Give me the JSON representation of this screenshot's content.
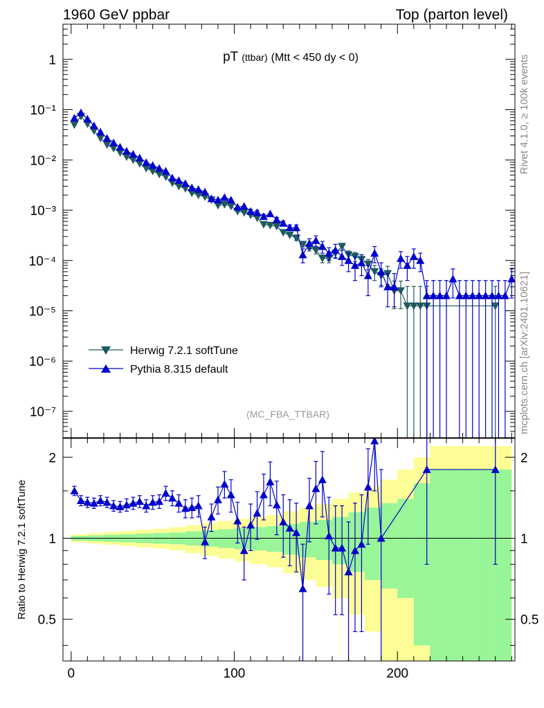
{
  "header": {
    "left": "1960 GeV ppbar",
    "right": "Top (parton level)"
  },
  "side_labels": {
    "rivet": "Rivet 4.1.0, ≥ 100k events",
    "mcplots": "mcplots.cern.ch [arXiv:2401.10621]"
  },
  "chart_data": [
    {
      "type": "scatter",
      "title": "pT",
      "title_sub": "(ttbar)",
      "title_cut": "(Mtt < 450 dy < 0)",
      "analysis_tag": "(MC_FBA_TTBAR)",
      "xlabel": "",
      "ylabel": "",
      "xlim": [
        -5,
        272
      ],
      "yscale": "log",
      "ylim": [
        3e-08,
        5
      ],
      "y_ticks": [
        "1",
        "10⁻¹",
        "10⁻²",
        "10⁻³",
        "10⁻⁴",
        "10⁻⁵",
        "10⁻⁶",
        "10⁻⁷"
      ],
      "series": [
        {
          "name": "Herwig 7.2.1 softTune",
          "color": "#1f5a5f",
          "marker": "triangle-down",
          "x": [
            2,
            6,
            10,
            14,
            18,
            22,
            26,
            30,
            34,
            38,
            42,
            46,
            50,
            54,
            58,
            62,
            66,
            70,
            74,
            78,
            82,
            86,
            90,
            94,
            98,
            102,
            106,
            110,
            114,
            118,
            122,
            126,
            130,
            134,
            138,
            142,
            146,
            150,
            154,
            158,
            162,
            166,
            170,
            174,
            178,
            182,
            186,
            190,
            194,
            198,
            202,
            206,
            210,
            214,
            218,
            260
          ],
          "y": [
            0.05,
            0.074,
            0.052,
            0.038,
            0.027,
            0.02,
            0.017,
            0.014,
            0.0115,
            0.01,
            0.0085,
            0.0068,
            0.006,
            0.0052,
            0.0046,
            0.0035,
            0.003,
            0.0027,
            0.0022,
            0.002,
            0.00185,
            0.0016,
            0.00125,
            0.0013,
            0.0012,
            0.00095,
            0.0009,
            0.0008,
            0.0007,
            0.00052,
            0.0005,
            0.00048,
            0.00036,
            0.00032,
            0.00028,
            0.00021,
            0.00018,
            0.00016,
            0.00011,
            0.00011,
            0.00014,
            0.00019,
            0.00013,
            0.00012,
            0.000105,
            8.5e-05,
            6e-05,
            5e-05,
            5.5e-05,
            2.5e-05,
            2.5e-05,
            1.25e-05,
            1.25e-05,
            1.25e-05,
            1.25e-05,
            1.25e-05
          ],
          "err_low": [
            0.002,
            0.003,
            0.002,
            0.0015,
            0.001,
            0.0008,
            0.0007,
            0.0006,
            0.0005,
            0.0004,
            0.00035,
            0.0003,
            0.00025,
            0.00022,
            0.0002,
            0.00016,
            0.00014,
            0.00012,
            0.0001,
            9e-05,
            9e-05,
            8e-05,
            7e-05,
            7e-05,
            7e-05,
            6e-05,
            6e-05,
            5e-05,
            5e-05,
            4e-05,
            4e-05,
            4e-05,
            3e-05,
            3e-05,
            3e-05,
            2.5e-05,
            2.5e-05,
            2.5e-05,
            2e-05,
            2e-05,
            2.5e-05,
            3e-05,
            2.5e-05,
            2.5e-05,
            2.5e-05,
            2e-05,
            2e-05,
            1.8e-05,
            2.2e-05,
            1.4e-05,
            1.4e-05,
            1.25e-05,
            1.25e-05,
            1.25e-05,
            1.25e-05,
            1.25e-05
          ],
          "err_high": [
            0.002,
            0.003,
            0.002,
            0.0015,
            0.001,
            0.0008,
            0.0007,
            0.0006,
            0.0005,
            0.0004,
            0.00035,
            0.0003,
            0.00025,
            0.00022,
            0.0002,
            0.00016,
            0.00014,
            0.00012,
            0.0001,
            9e-05,
            9e-05,
            8e-05,
            7e-05,
            7e-05,
            7e-05,
            6e-05,
            6e-05,
            5e-05,
            5e-05,
            4e-05,
            4e-05,
            4e-05,
            3e-05,
            3e-05,
            3e-05,
            2.5e-05,
            2.5e-05,
            2.5e-05,
            2e-05,
            2e-05,
            2.5e-05,
            3e-05,
            2.5e-05,
            2.5e-05,
            2.5e-05,
            2e-05,
            2e-05,
            1.8e-05,
            2.2e-05,
            1.4e-05,
            1.4e-05,
            1.8e-05,
            1.8e-05,
            1.8e-05,
            1.8e-05,
            1.8e-05
          ]
        },
        {
          "name": "Pythia 8.315 default",
          "color": "#0000cc",
          "marker": "triangle-up",
          "x": [
            2,
            6,
            10,
            14,
            18,
            22,
            26,
            30,
            34,
            38,
            42,
            46,
            50,
            54,
            58,
            62,
            66,
            70,
            74,
            78,
            82,
            86,
            90,
            94,
            98,
            102,
            106,
            110,
            114,
            118,
            122,
            126,
            130,
            134,
            138,
            142,
            146,
            150,
            154,
            158,
            162,
            166,
            170,
            174,
            178,
            182,
            186,
            190,
            194,
            198,
            202,
            206,
            210,
            214,
            218,
            222,
            226,
            230,
            234,
            238,
            242,
            246,
            250,
            254,
            258,
            262,
            266,
            270
          ],
          "y": [
            0.068,
            0.087,
            0.065,
            0.048,
            0.036,
            0.027,
            0.022,
            0.018,
            0.015,
            0.013,
            0.011,
            0.0089,
            0.0078,
            0.0068,
            0.006,
            0.0044,
            0.0039,
            0.0034,
            0.0028,
            0.0026,
            0.0023,
            0.0017,
            0.0016,
            0.0018,
            0.0016,
            0.00115,
            0.0012,
            0.00095,
            0.0009,
            0.00075,
            0.00085,
            0.00065,
            0.00055,
            0.00045,
            0.00045,
            0.00013,
            0.00022,
            0.00025,
            0.00019,
            0.00014,
            0.00016,
            0.00012,
            0.0001,
            8e-05,
            9e-05,
            5e-05,
            0.00014,
            6e-05,
            3e-05,
            3e-05,
            0.00011,
            8e-05,
            0.00012,
            0.0001,
            2e-05,
            2e-05,
            2e-05,
            2e-05,
            4.3e-05,
            2e-05,
            2e-05,
            2e-05,
            2e-05,
            2e-05,
            2e-05,
            2e-05,
            2e-05,
            4.3e-05
          ],
          "err_low": [
            0.003,
            0.004,
            0.003,
            0.002,
            0.0015,
            0.001,
            0.0009,
            0.0008,
            0.0007,
            0.0006,
            0.0005,
            0.00045,
            0.0004,
            0.00035,
            0.0003,
            0.00025,
            0.00022,
            0.0002,
            0.00018,
            0.00016,
            0.00015,
            0.00012,
            0.00012,
            0.00012,
            0.00012,
            0.0001,
            0.0001,
            9e-05,
            9e-05,
            8e-05,
            8e-05,
            7e-05,
            6e-05,
            6e-05,
            6e-05,
            4e-05,
            5e-05,
            6e-05,
            5e-05,
            4e-05,
            5e-05,
            4e-05,
            4e-05,
            4e-05,
            4e-05,
            3e-05,
            5e-05,
            3e-05,
            1.8e-05,
            1.8e-05,
            4e-05,
            4e-05,
            5e-05,
            4e-05,
            2e-05,
            2e-05,
            2e-05,
            2e-05,
            2.5e-05,
            2e-05,
            2e-05,
            2e-05,
            2e-05,
            2e-05,
            2e-05,
            2e-05,
            2e-05,
            2.5e-05
          ],
          "err_high": [
            0.003,
            0.004,
            0.003,
            0.002,
            0.0015,
            0.001,
            0.0009,
            0.0008,
            0.0007,
            0.0006,
            0.0005,
            0.00045,
            0.0004,
            0.00035,
            0.0003,
            0.00025,
            0.00022,
            0.0002,
            0.00018,
            0.00016,
            0.00015,
            0.00012,
            0.00012,
            0.00012,
            0.00012,
            0.0001,
            0.0001,
            9e-05,
            9e-05,
            8e-05,
            8e-05,
            7e-05,
            6e-05,
            6e-05,
            6e-05,
            4e-05,
            5e-05,
            6e-05,
            5e-05,
            4e-05,
            5e-05,
            4e-05,
            4e-05,
            4e-05,
            4e-05,
            3e-05,
            5e-05,
            3e-05,
            2.5e-05,
            2.5e-05,
            4e-05,
            4e-05,
            5e-05,
            4e-05,
            2e-05,
            2e-05,
            2e-05,
            2e-05,
            2.5e-05,
            2e-05,
            2e-05,
            2e-05,
            2e-05,
            2e-05,
            2e-05,
            2e-05,
            2e-05,
            2.5e-05
          ]
        }
      ]
    },
    {
      "type": "scatter",
      "title": "",
      "ylabel": "Ratio to Herwig 7.2.1 softTune",
      "xlabel": "",
      "xlim": [
        -5,
        272
      ],
      "ylim": [
        0.35,
        2.35
      ],
      "yscale": "log",
      "x_ticks": [
        0,
        100,
        200
      ],
      "y_ticks": [
        0.5,
        1,
        2
      ],
      "reference_line": 1,
      "band_x": [
        0,
        10,
        20,
        30,
        40,
        50,
        60,
        70,
        80,
        90,
        100,
        110,
        120,
        130,
        140,
        150,
        160,
        170,
        180,
        190,
        200,
        210,
        220,
        230,
        240,
        250,
        260
      ],
      "band_inner_halfwidth": [
        0.02,
        0.025,
        0.03,
        0.035,
        0.04,
        0.045,
        0.05,
        0.06,
        0.07,
        0.08,
        0.09,
        0.1,
        0.11,
        0.13,
        0.15,
        0.17,
        0.2,
        0.25,
        0.3,
        0.35,
        0.4,
        0.6,
        0.8,
        0.8,
        0.8,
        0.8,
        0.8
      ],
      "band_outer_halfwidth": [
        0.035,
        0.045,
        0.055,
        0.065,
        0.075,
        0.085,
        0.1,
        0.12,
        0.14,
        0.16,
        0.18,
        0.2,
        0.22,
        0.26,
        0.3,
        0.34,
        0.4,
        0.48,
        0.55,
        0.65,
        0.8,
        1.0,
        1.2,
        1.2,
        1.2,
        1.2,
        1.2
      ],
      "series": [
        {
          "name": "Pythia 8.315 default / Herwig 7.2.1 softTune",
          "color": "#0000cc",
          "marker": "triangle-up",
          "x": [
            2,
            6,
            10,
            14,
            18,
            22,
            26,
            30,
            34,
            38,
            42,
            46,
            50,
            54,
            58,
            62,
            66,
            70,
            74,
            78,
            82,
            86,
            90,
            94,
            98,
            102,
            106,
            110,
            114,
            118,
            122,
            126,
            130,
            134,
            138,
            142,
            146,
            150,
            154,
            158,
            162,
            166,
            170,
            174,
            178,
            182,
            186,
            190,
            218,
            260
          ],
          "y": [
            1.5,
            1.38,
            1.36,
            1.35,
            1.38,
            1.36,
            1.32,
            1.31,
            1.33,
            1.35,
            1.37,
            1.32,
            1.36,
            1.37,
            1.47,
            1.41,
            1.35,
            1.29,
            1.3,
            1.32,
            0.97,
            1.2,
            1.39,
            1.59,
            1.45,
            1.16,
            0.9,
            1.12,
            1.24,
            1.45,
            1.62,
            1.33,
            1.15,
            1.09,
            1.05,
            0.65,
            1.32,
            1.53,
            1.65,
            1.02,
            0.92,
            0.92,
            0.75,
            0.9,
            0.95,
            1.55,
            2.3,
            1.0,
            1.8,
            1.8
          ],
          "err": [
            0.06,
            0.06,
            0.06,
            0.06,
            0.06,
            0.06,
            0.06,
            0.06,
            0.07,
            0.07,
            0.07,
            0.07,
            0.08,
            0.08,
            0.09,
            0.09,
            0.1,
            0.1,
            0.11,
            0.12,
            0.13,
            0.14,
            0.16,
            0.18,
            0.2,
            0.2,
            0.2,
            0.22,
            0.25,
            0.28,
            0.3,
            0.3,
            0.3,
            0.3,
            0.3,
            0.3,
            0.35,
            0.4,
            0.45,
            0.4,
            0.4,
            0.4,
            0.4,
            0.45,
            0.5,
            0.6,
            0.8,
            0.8,
            1.0,
            1.0
          ]
        }
      ]
    }
  ]
}
